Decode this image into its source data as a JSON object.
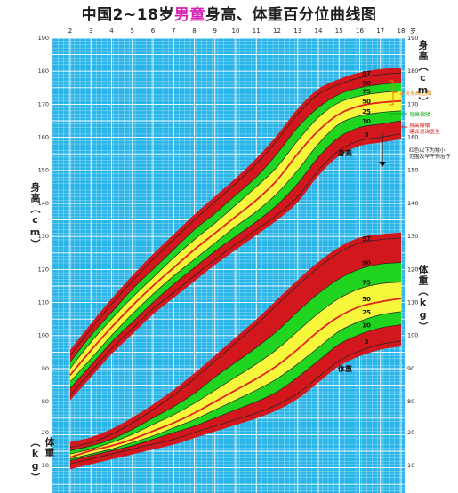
{
  "header": {
    "title_pre": "中国2~18岁",
    "title_highlight": "男童",
    "title_post": "身高、体重百分位曲线图"
  },
  "axes": {
    "left_height_label": "身高（cm）",
    "right_height_label": "身高（cm）",
    "right_weight_label": "体重（kg）",
    "left_weight_label": "体重（kg）",
    "age_unit": "岁"
  },
  "annotations": {
    "normal_range": "正常身高范围",
    "low_height": "身高偏矮",
    "very_low": "身高偏矮建议咨询医生",
    "red_note": "红色以下为矮小范围及早干预治疗",
    "height_zone": "身高",
    "weight_zone": "体重"
  },
  "colors": {
    "grid_bg": "#29b5e8",
    "grid_line": "#ffffff",
    "outer_band": "#d2171d",
    "mid_band": "#1fd51f",
    "inner_band": "#f6f63a",
    "median_line": "#e0231e",
    "title_highlight": "#d61fb4",
    "note_orange": "#e07a00",
    "note_green": "#15a815",
    "note_red": "#dd1111"
  },
  "chart_data": [
    {
      "type": "area",
      "title": "身高",
      "xlabel": "岁",
      "ylabel": "身高（cm）",
      "xlim": [
        2,
        18
      ],
      "ylim": [
        80,
        190
      ],
      "x_ticks": [
        2,
        3,
        4,
        5,
        6,
        7,
        8,
        9,
        10,
        11,
        12,
        13,
        14,
        15,
        16,
        17,
        18
      ],
      "y_ticks": [
        80,
        90,
        100,
        110,
        120,
        130,
        140,
        150,
        160,
        170,
        180,
        190
      ],
      "x": [
        2,
        3,
        4,
        5,
        6,
        7,
        8,
        9,
        10,
        11,
        12,
        13,
        14,
        15,
        16,
        17,
        18
      ],
      "series": [
        {
          "name": "3",
          "values": [
            82,
            89,
            96,
            102,
            108,
            113,
            118,
            123,
            127.5,
            132,
            136.5,
            142,
            150,
            156,
            159,
            160,
            161
          ]
        },
        {
          "name": "10",
          "values": [
            84,
            91,
            98,
            104,
            110,
            115.5,
            120.5,
            125.5,
            130,
            134.5,
            139.5,
            146,
            154,
            160,
            163,
            164,
            165
          ]
        },
        {
          "name": "25",
          "values": [
            86,
            93,
            100,
            106.5,
            112.5,
            118,
            123,
            128,
            133,
            137.5,
            143,
            150,
            158,
            164,
            166.5,
            167.5,
            168
          ]
        },
        {
          "name": "50",
          "values": [
            88,
            95.5,
            102.5,
            109,
            115,
            120.5,
            126,
            131,
            136,
            141,
            147,
            155,
            162,
            167,
            169.5,
            170.5,
            171
          ]
        },
        {
          "name": "75",
          "values": [
            90,
            98,
            105,
            111.5,
            117.5,
            123.5,
            129,
            134,
            139.5,
            145,
            151,
            159,
            166,
            170.5,
            172.5,
            173.5,
            174
          ]
        },
        {
          "name": "90",
          "values": [
            92,
            100,
            107,
            114,
            120,
            126,
            132,
            137,
            142.5,
            148,
            155,
            163,
            169,
            173,
            175,
            176,
            176.5
          ]
        },
        {
          "name": "97",
          "values": [
            94,
            102,
            109.5,
            116.5,
            123,
            129,
            135,
            140.5,
            146,
            152,
            159,
            167,
            173,
            176,
            178,
            179,
            179.5
          ]
        }
      ]
    },
    {
      "type": "area",
      "title": "体重",
      "xlabel": "岁",
      "ylabel": "体重（kg）",
      "xlim": [
        2,
        18
      ],
      "ylim": [
        10,
        90
      ],
      "series": [
        {
          "name": "3",
          "values": [
            10.5,
            12,
            13.5,
            15,
            16.5,
            18,
            20,
            22,
            24,
            26,
            28.5,
            32,
            37,
            42,
            45,
            47,
            48
          ]
        },
        {
          "name": "10",
          "values": [
            11.5,
            13,
            14.5,
            16,
            18,
            20,
            22,
            24.5,
            27,
            29.5,
            32.5,
            37,
            42,
            47,
            50,
            52,
            53
          ]
        },
        {
          "name": "25",
          "values": [
            12,
            13.5,
            15,
            17,
            19,
            21.5,
            24,
            27,
            30,
            33,
            36.5,
            41,
            46,
            51,
            54,
            56,
            57
          ]
        },
        {
          "name": "50",
          "values": [
            12.5,
            14.5,
            16,
            18,
            20.5,
            23,
            26,
            29.5,
            33,
            36.5,
            40.5,
            45.5,
            51,
            55.5,
            58.5,
            60,
            61
          ]
        },
        {
          "name": "75",
          "values": [
            13.5,
            15,
            17,
            19.5,
            22.5,
            25.5,
            29,
            33,
            37,
            41,
            45.5,
            51,
            56.5,
            61,
            64,
            65.5,
            66
          ]
        },
        {
          "name": "90",
          "values": [
            14.5,
            16,
            18,
            21,
            24.5,
            28,
            32,
            37,
            41.5,
            46,
            51,
            57,
            62.5,
            67,
            70,
            71.5,
            72
          ]
        },
        {
          "name": "97",
          "values": [
            15.5,
            17,
            19.5,
            23,
            27,
            31.5,
            36.5,
            42,
            47.5,
            53,
            59,
            65,
            70.5,
            75,
            78,
            79,
            79.5
          ]
        }
      ]
    }
  ]
}
